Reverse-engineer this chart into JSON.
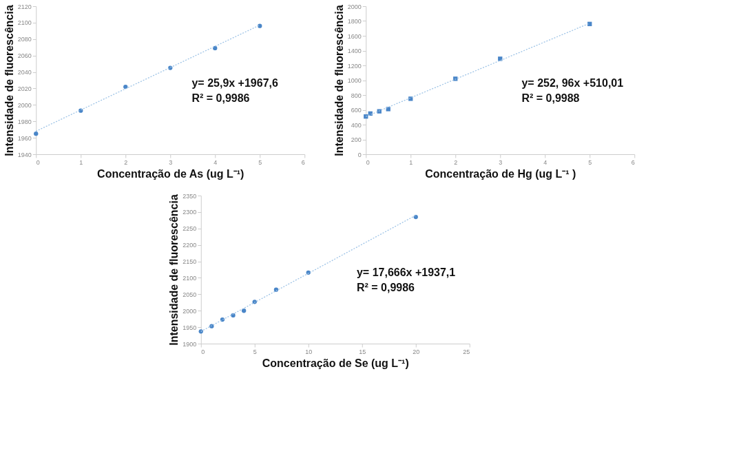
{
  "chart_data": [
    {
      "type": "scatter",
      "xlabel": "Concentração de As (ug L⁻¹)",
      "ylabel": "Intensidade de fluorescência",
      "grid": false,
      "xlim": [
        0,
        6
      ],
      "xticks": [
        0,
        1,
        2,
        3,
        4,
        5,
        6
      ],
      "ylim": [
        1940,
        2120
      ],
      "yticks": [
        1940,
        1960,
        1980,
        2000,
        2020,
        2040,
        2060,
        2080,
        2100,
        2120
      ],
      "annotations": [
        "y= 25,9x +1967,6",
        "R² = 0,9986"
      ],
      "series": [
        {
          "marker": "circle",
          "color": "#4a86c8",
          "x": [
            0,
            1,
            2,
            3,
            4,
            5
          ],
          "values": [
            1965,
            1993,
            2022,
            2045,
            2069,
            2096
          ]
        },
        {
          "type": "line",
          "marker": "none",
          "line_style": "dotted",
          "color": "#9dc3e6",
          "x": [
            0,
            5
          ],
          "values": [
            1968,
            2097
          ]
        }
      ]
    },
    {
      "type": "scatter",
      "xlabel": "Concentração de Hg (ug L⁻¹ )",
      "ylabel": "Intensidade de fluorescência",
      "grid": false,
      "xlim": [
        0,
        6
      ],
      "xticks": [
        0,
        1,
        2,
        3,
        4,
        5,
        6
      ],
      "ylim": [
        0,
        2000
      ],
      "yticks": [
        0,
        200,
        400,
        600,
        800,
        1000,
        1200,
        1400,
        1600,
        1800,
        2000
      ],
      "annotations": [
        "y= 252, 96x +510,01",
        "R² = 0,9988"
      ],
      "series": [
        {
          "marker": "square",
          "color": "#4a86c8",
          "x": [
            0,
            0.1,
            0.3,
            0.5,
            1,
            2,
            3,
            5
          ],
          "values": [
            510,
            550,
            580,
            610,
            750,
            1020,
            1290,
            1760
          ]
        },
        {
          "type": "line",
          "marker": "none",
          "line_style": "dotted",
          "color": "#9dc3e6",
          "x": [
            0,
            5
          ],
          "values": [
            510,
            1770
          ]
        }
      ]
    },
    {
      "type": "scatter",
      "xlabel": "Concentração de Se (ug L⁻¹)",
      "ylabel": "Intensidade de fluorescência",
      "grid": false,
      "xlim": [
        0,
        25
      ],
      "xticks": [
        0,
        5,
        10,
        15,
        20,
        25
      ],
      "ylim": [
        1900,
        2350
      ],
      "yticks": [
        1900,
        1950,
        2000,
        2050,
        2100,
        2150,
        2200,
        2250,
        2300,
        2350
      ],
      "annotations": [
        "y= 17,666x +1937,1",
        "R² = 0,9986"
      ],
      "series": [
        {
          "marker": "circle",
          "color": "#4a86c8",
          "x": [
            0,
            1,
            2,
            3,
            4,
            5,
            7,
            10,
            20
          ],
          "values": [
            1937,
            1953,
            1973,
            1986,
            2000,
            2027,
            2064,
            2116,
            2285
          ]
        },
        {
          "type": "line",
          "marker": "none",
          "line_style": "dotted",
          "color": "#9dc3e6",
          "x": [
            0,
            20
          ],
          "values": [
            1937,
            2290
          ]
        }
      ]
    }
  ]
}
